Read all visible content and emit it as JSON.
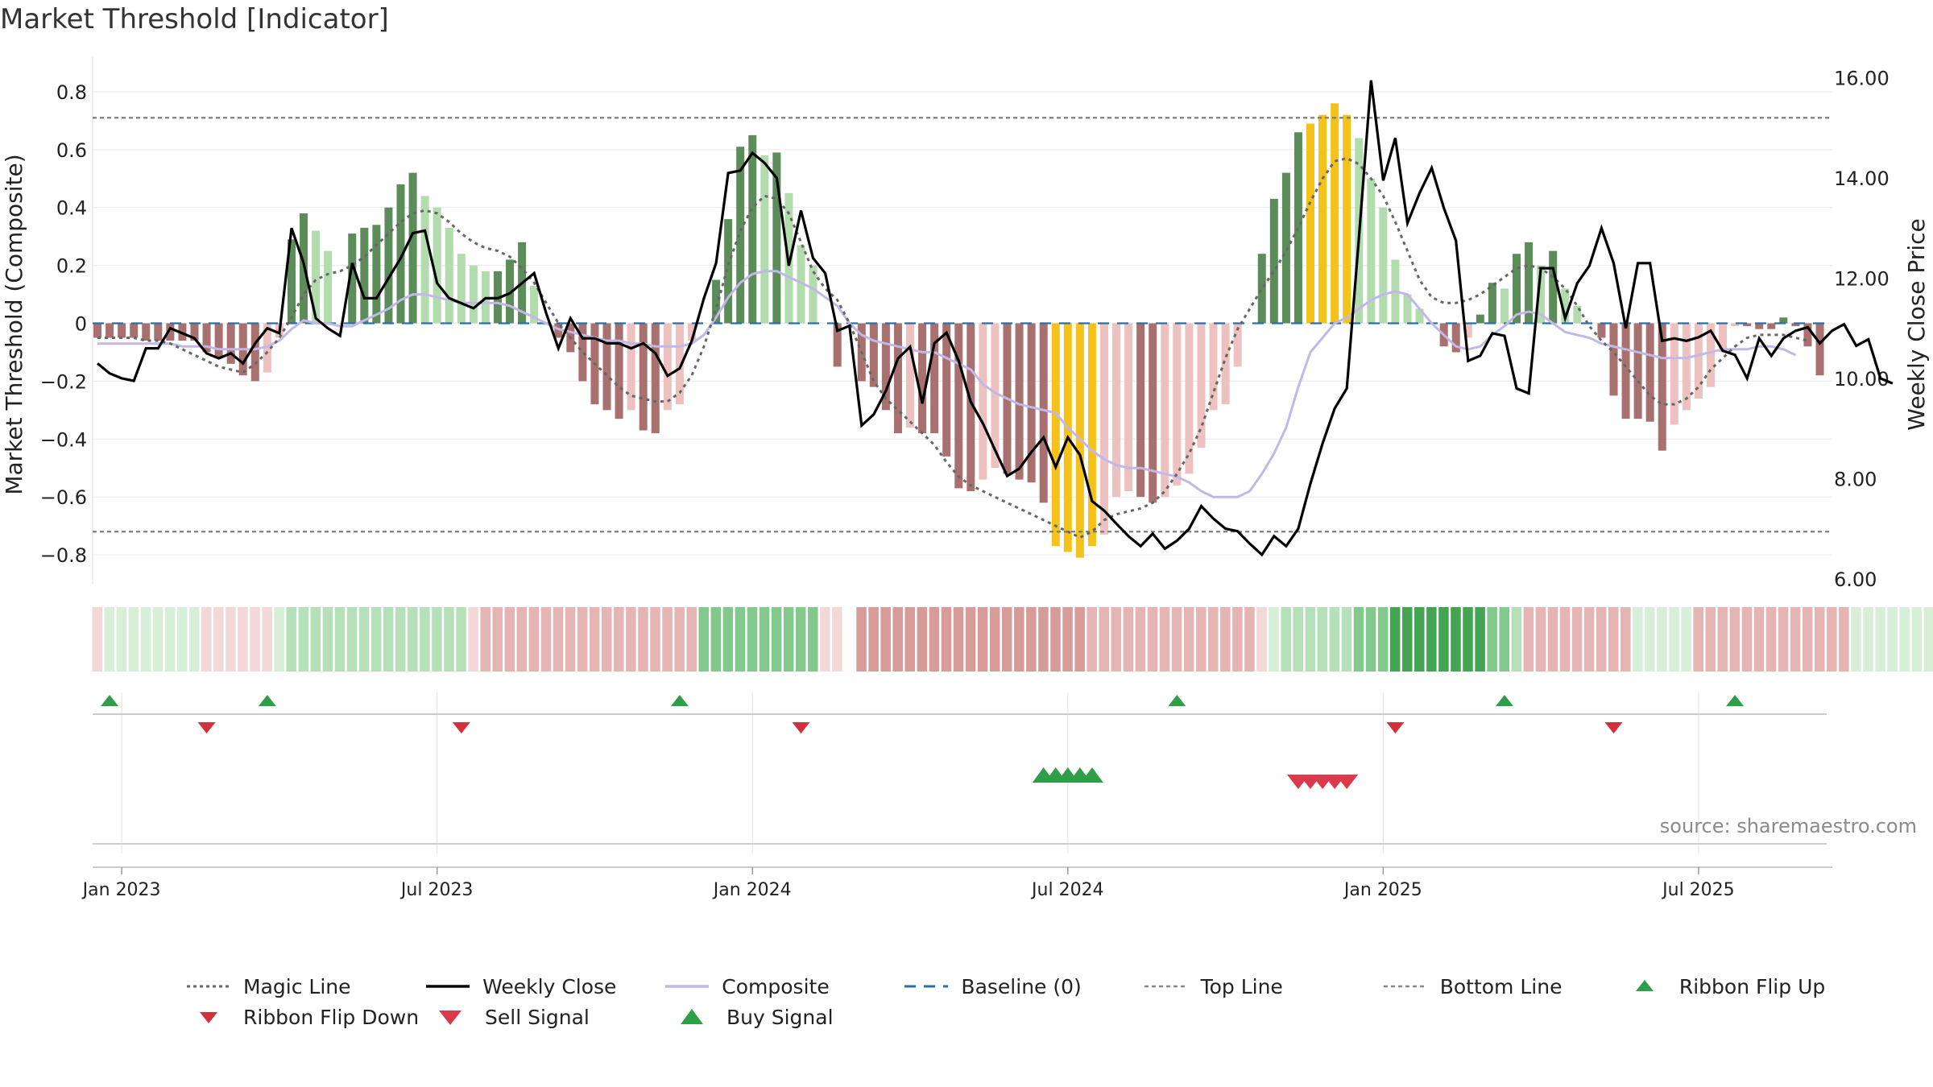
{
  "title": "Market Threshold [Indicator]",
  "source": "source: sharemaestro.com",
  "colors": {
    "magic_line": "#666666",
    "weekly_close": "#000000",
    "composite": "#c2b8e8",
    "baseline": "#2a6fa8",
    "top_bottom": "#777777",
    "bar_dark_green": "#5b8c5a",
    "bar_light_green": "#b3dcae",
    "bar_dark_red": "#a8706e",
    "bar_light_red": "#ecc1bf",
    "bar_gold": "#f5c21b",
    "buy": "#2e9e48",
    "sell": "#d93a4c",
    "flip_up": "#2e9e48",
    "flip_down": "#d3313a"
  },
  "chart_data": {
    "type": "bar",
    "title": "Market Threshold [Indicator]",
    "ylabel": "Market Threshold (Composite)",
    "y2label": "Weekly Close Price",
    "ylim": [
      -0.9,
      0.9
    ],
    "y2lim": [
      5.9,
      16.3
    ],
    "yticks": [
      0.8,
      0.6,
      0.4,
      0.2,
      0,
      -0.2,
      -0.4,
      -0.6,
      -0.8
    ],
    "ytick_labels": [
      "0.8",
      "0.6",
      "0.4",
      "0.2",
      "0",
      "−0.2",
      "−0.4",
      "−0.6",
      "−0.8"
    ],
    "y2ticks": [
      16,
      14,
      12,
      10,
      8,
      6
    ],
    "y2tick_labels": [
      "16.00",
      "14.00",
      "12.00",
      "10.00",
      "8.00",
      "6.00"
    ],
    "xtick_labels": [
      "Jan 2023",
      "Jul 2023",
      "Jan 2024",
      "Jul 2024",
      "Jan 2025",
      "Jul 2025"
    ],
    "xtick_weeks": [
      2,
      28,
      54,
      80,
      106,
      132
    ],
    "top_line": 0.71,
    "bottom_line": -0.72,
    "composite_bars": [
      -0.05,
      -0.05,
      -0.05,
      -0.05,
      -0.06,
      -0.06,
      -0.06,
      -0.06,
      -0.06,
      -0.1,
      -0.12,
      -0.14,
      -0.18,
      -0.2,
      -0.17,
      -0.05,
      0.29,
      0.38,
      0.32,
      0.25,
      0.0,
      0.31,
      0.33,
      0.34,
      0.4,
      0.48,
      0.52,
      0.44,
      0.4,
      0.33,
      0.24,
      0.2,
      0.18,
      0.18,
      0.22,
      0.28,
      0.13,
      0.0,
      -0.05,
      -0.1,
      -0.2,
      -0.28,
      -0.3,
      -0.33,
      -0.3,
      -0.37,
      -0.38,
      -0.3,
      -0.28,
      -0.06,
      0.0,
      0.15,
      0.36,
      0.61,
      0.65,
      0.58,
      0.59,
      0.45,
      0.27,
      0.2,
      0.0,
      -0.15,
      0.0,
      -0.2,
      -0.22,
      -0.3,
      -0.38,
      -0.36,
      -0.38,
      -0.38,
      -0.46,
      -0.57,
      -0.58,
      -0.54,
      -0.5,
      -0.52,
      -0.54,
      -0.55,
      -0.62,
      -0.77,
      -0.79,
      -0.81,
      -0.77,
      -0.73,
      -0.6,
      -0.58,
      -0.6,
      -0.62,
      -0.6,
      -0.56,
      -0.52,
      -0.43,
      -0.3,
      -0.28,
      -0.15,
      0.0,
      0.24,
      0.43,
      0.52,
      0.66,
      0.69,
      0.72,
      0.76,
      0.72,
      0.64,
      0.5,
      0.4,
      0.22,
      0.1,
      0.05,
      0.0,
      -0.08,
      -0.1,
      -0.05,
      0.03,
      0.14,
      0.12,
      0.24,
      0.28,
      0.2,
      0.25,
      0.12,
      0.06,
      0.0,
      -0.05,
      -0.25,
      -0.33,
      -0.33,
      -0.34,
      -0.44,
      -0.35,
      -0.3,
      -0.26,
      -0.22,
      -0.1,
      -0.01,
      -0.01,
      -0.02,
      -0.02,
      0.02,
      -0.01,
      -0.08,
      -0.18
    ],
    "magic_line": [
      -0.05,
      -0.05,
      -0.05,
      -0.05,
      -0.06,
      -0.06,
      -0.07,
      -0.09,
      -0.11,
      -0.13,
      -0.15,
      -0.16,
      -0.17,
      -0.14,
      -0.1,
      -0.05,
      0.02,
      0.1,
      0.15,
      0.17,
      0.18,
      0.2,
      0.23,
      0.27,
      0.31,
      0.35,
      0.38,
      0.39,
      0.38,
      0.35,
      0.31,
      0.28,
      0.26,
      0.25,
      0.23,
      0.19,
      0.14,
      0.07,
      0.0,
      -0.05,
      -0.1,
      -0.14,
      -0.18,
      -0.22,
      -0.25,
      -0.26,
      -0.27,
      -0.27,
      -0.24,
      -0.18,
      -0.08,
      0.05,
      0.2,
      0.32,
      0.4,
      0.44,
      0.43,
      0.38,
      0.28,
      0.18,
      0.12,
      0.08,
      0.0,
      -0.1,
      -0.2,
      -0.26,
      -0.3,
      -0.34,
      -0.38,
      -0.42,
      -0.48,
      -0.53,
      -0.56,
      -0.58,
      -0.6,
      -0.62,
      -0.64,
      -0.66,
      -0.68,
      -0.7,
      -0.72,
      -0.74,
      -0.72,
      -0.68,
      -0.66,
      -0.65,
      -0.64,
      -0.62,
      -0.58,
      -0.52,
      -0.45,
      -0.36,
      -0.24,
      -0.12,
      -0.02,
      0.05,
      0.12,
      0.18,
      0.25,
      0.33,
      0.42,
      0.5,
      0.56,
      0.57,
      0.55,
      0.5,
      0.44,
      0.35,
      0.25,
      0.15,
      0.09,
      0.07,
      0.07,
      0.08,
      0.1,
      0.13,
      0.16,
      0.19,
      0.2,
      0.19,
      0.16,
      0.12,
      0.06,
      -0.01,
      -0.06,
      -0.1,
      -0.15,
      -0.2,
      -0.25,
      -0.28,
      -0.28,
      -0.26,
      -0.22,
      -0.16,
      -0.12,
      -0.08,
      -0.05,
      -0.04,
      -0.04,
      -0.04,
      -0.05,
      -0.06
    ],
    "composite_line": [
      -0.07,
      -0.07,
      -0.07,
      -0.07,
      -0.07,
      -0.07,
      -0.07,
      -0.08,
      -0.08,
      -0.08,
      -0.09,
      -0.09,
      -0.09,
      -0.09,
      -0.08,
      -0.06,
      -0.02,
      0.01,
      0.0,
      0.0,
      -0.01,
      -0.01,
      0.01,
      0.03,
      0.05,
      0.08,
      0.1,
      0.1,
      0.09,
      0.08,
      0.07,
      0.07,
      0.07,
      0.07,
      0.06,
      0.04,
      0.02,
      0.0,
      -0.02,
      -0.03,
      -0.04,
      -0.05,
      -0.06,
      -0.06,
      -0.07,
      -0.07,
      -0.08,
      -0.08,
      -0.08,
      -0.07,
      -0.04,
      0.02,
      0.09,
      0.14,
      0.17,
      0.18,
      0.18,
      0.16,
      0.14,
      0.12,
      0.09,
      0.06,
      0.0,
      -0.04,
      -0.06,
      -0.07,
      -0.08,
      -0.09,
      -0.1,
      -0.1,
      -0.12,
      -0.14,
      -0.16,
      -0.21,
      -0.24,
      -0.26,
      -0.28,
      -0.29,
      -0.3,
      -0.31,
      -0.36,
      -0.4,
      -0.44,
      -0.47,
      -0.49,
      -0.5,
      -0.5,
      -0.51,
      -0.52,
      -0.53,
      -0.55,
      -0.58,
      -0.6,
      -0.6,
      -0.6,
      -0.58,
      -0.52,
      -0.45,
      -0.36,
      -0.22,
      -0.1,
      -0.05,
      0.0,
      0.02,
      0.05,
      0.08,
      0.1,
      0.11,
      0.1,
      0.05,
      0.0,
      -0.04,
      -0.08,
      -0.09,
      -0.08,
      -0.04,
      -0.01,
      0.03,
      0.04,
      0.03,
      0.0,
      -0.03,
      -0.04,
      -0.05,
      -0.07,
      -0.08,
      -0.09,
      -0.1,
      -0.11,
      -0.12,
      -0.12,
      -0.12,
      -0.11,
      -0.1,
      -0.09,
      -0.09,
      -0.09,
      -0.08,
      -0.08,
      -0.09,
      -0.11
    ],
    "weekly_close": [
      10.3,
      10.1,
      10.0,
      9.95,
      10.6,
      10.6,
      11.0,
      10.9,
      10.8,
      10.5,
      10.4,
      10.5,
      10.3,
      10.7,
      11.0,
      10.9,
      13.0,
      12.3,
      11.2,
      11.0,
      10.85,
      12.3,
      11.6,
      11.6,
      12.0,
      12.4,
      12.9,
      12.95,
      11.9,
      11.6,
      11.5,
      11.4,
      11.6,
      11.6,
      11.7,
      11.9,
      12.1,
      11.3,
      10.6,
      11.2,
      10.8,
      10.8,
      10.7,
      10.7,
      10.6,
      10.7,
      10.5,
      10.05,
      10.2,
      10.75,
      11.6,
      12.3,
      14.1,
      14.15,
      14.5,
      14.3,
      14.0,
      12.25,
      13.35,
      12.4,
      12.1,
      10.95,
      11.05,
      9.06,
      9.28,
      9.75,
      10.4,
      10.63,
      9.5,
      10.7,
      10.91,
      10.35,
      9.53,
      9.1,
      8.57,
      8.05,
      8.2,
      8.53,
      8.82,
      8.23,
      8.82,
      8.47,
      7.55,
      7.36,
      7.1,
      6.85,
      6.65,
      6.9,
      6.6,
      6.76,
      7.0,
      7.45,
      7.2,
      7.0,
      6.95,
      6.7,
      6.48,
      6.85,
      6.65,
      7.0,
      7.9,
      8.7,
      9.4,
      9.8,
      12.8,
      15.95,
      13.95,
      14.8,
      13.1,
      13.7,
      14.2,
      13.4,
      12.75,
      10.35,
      10.45,
      10.9,
      10.85,
      9.8,
      9.7,
      12.2,
      12.2,
      11.2,
      11.9,
      12.25,
      13.0,
      12.3,
      11.0,
      12.3,
      12.3,
      10.75,
      10.8,
      10.75,
      10.82,
      10.95,
      10.55,
      10.47,
      10.0,
      10.8,
      10.45,
      10.8,
      10.95,
      11.02,
      10.7,
      10.95,
      11.08,
      10.65,
      10.78,
      10.0,
      9.9
    ],
    "ribbon_levels": [
      -1,
      1,
      1,
      1,
      1,
      1,
      1,
      1,
      1,
      -1,
      -1,
      -1,
      -1,
      -1,
      -1,
      1,
      2,
      2,
      2,
      2,
      2,
      2,
      2,
      2,
      2,
      2,
      2,
      2,
      2,
      2,
      2,
      -1,
      -2,
      -2,
      -2,
      -2,
      -2,
      -2,
      -2,
      -2,
      -2,
      -2,
      -2,
      -2,
      -2,
      -2,
      -2,
      -2,
      -2,
      -2,
      3,
      3,
      3,
      3,
      3,
      3,
      3,
      3,
      3,
      3,
      -1,
      -1,
      0,
      -3,
      -3,
      -3,
      -3,
      -3,
      -3,
      -3,
      -3,
      -3,
      -3,
      -3,
      -3,
      -3,
      -3,
      -3,
      -3,
      -3,
      -3,
      -3,
      -2,
      -2,
      -2,
      -2,
      -2,
      -2,
      -2,
      -2,
      -2,
      -2,
      -2,
      -2,
      -2,
      -2,
      -1,
      1,
      2,
      2,
      2,
      2,
      2,
      2,
      3,
      3,
      3,
      4,
      4,
      4,
      4,
      4,
      4,
      4,
      4,
      3,
      3,
      2,
      -2,
      -2,
      -2,
      -2,
      -2,
      -2,
      -2,
      -2,
      -2,
      1,
      1,
      1,
      1,
      1,
      -2,
      -2,
      -2,
      -2,
      -2,
      -2,
      -2,
      -2,
      -2,
      -2,
      -2,
      -2,
      -2,
      1,
      1,
      1,
      1,
      1,
      1,
      1,
      1
    ],
    "ribbon_flip_up_weeks": [
      1,
      14,
      48,
      89,
      116,
      135
    ],
    "ribbon_flip_down_weeks": [
      9,
      30,
      58,
      107,
      125
    ],
    "buy_signal_weeks": [
      78,
      79,
      80,
      81,
      82
    ],
    "sell_signal_weeks": [
      99,
      100,
      101,
      102,
      103
    ],
    "legend": [
      [
        "Magic Line",
        "Weekly Close",
        "Composite",
        "Baseline (0)",
        "Top Line",
        "Bottom Line",
        "Ribbon Flip Up"
      ],
      [
        "Ribbon Flip Down",
        "Sell Signal",
        "Buy Signal"
      ]
    ]
  }
}
